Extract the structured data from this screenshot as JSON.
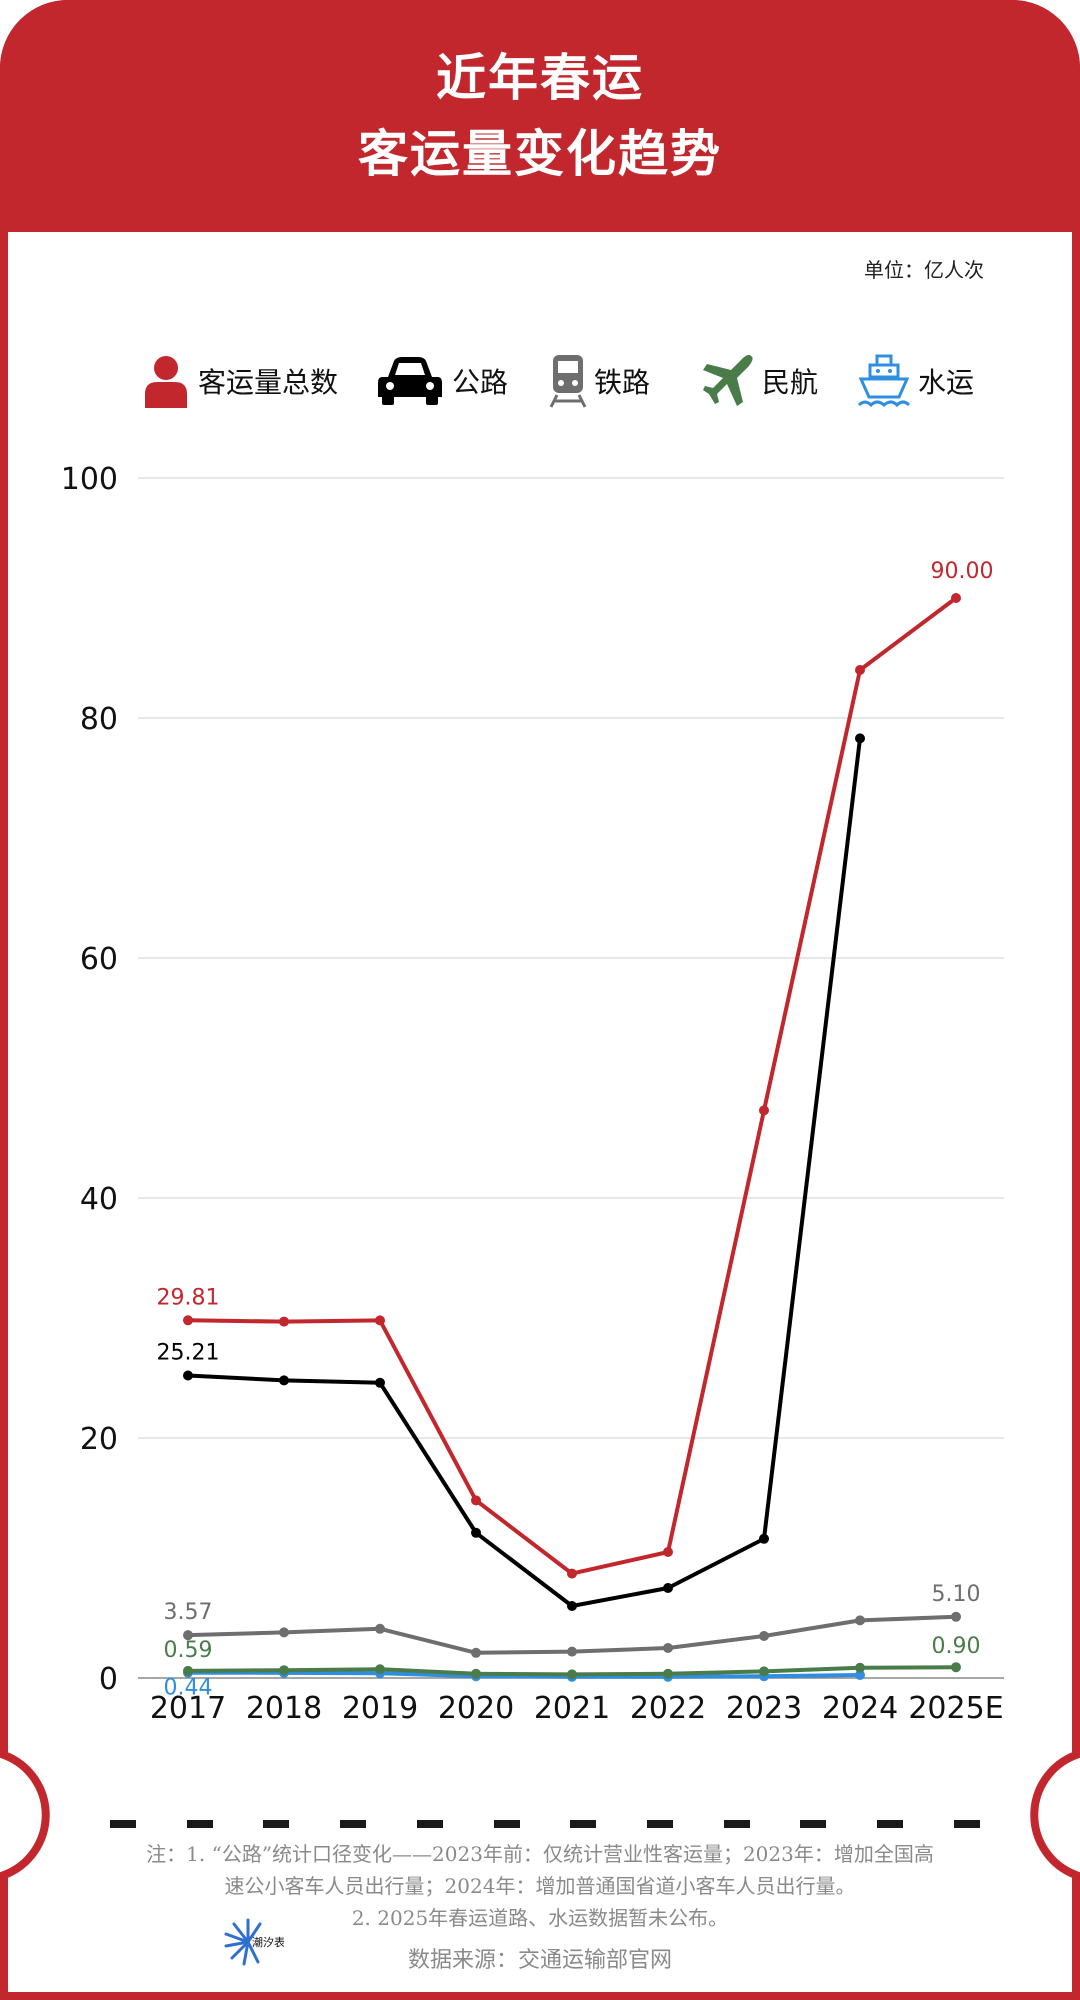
{
  "header": {
    "title_line1": "近年春运",
    "title_line2": "客运量变化趋势",
    "unit": "单位：亿人次"
  },
  "legend": [
    {
      "label": "客运量总数",
      "icon": "person-icon",
      "color": "#c1272d"
    },
    {
      "label": "公路",
      "icon": "car-icon",
      "color": "#000000"
    },
    {
      "label": "铁路",
      "icon": "train-icon",
      "color": "#6e6e6e"
    },
    {
      "label": "民航",
      "icon": "plane-icon",
      "color": "#4a7c4a"
    },
    {
      "label": "水运",
      "icon": "ship-icon",
      "color": "#2f8ee0"
    }
  ],
  "chart_data": {
    "type": "line",
    "categories": [
      "2017",
      "2018",
      "2019",
      "2020",
      "2021",
      "2022",
      "2023",
      "2024",
      "2025E"
    ],
    "ylim": [
      0,
      100
    ],
    "yticks": [
      0,
      20,
      40,
      60,
      80,
      100
    ],
    "grid": true,
    "legend_position": "top",
    "series": [
      {
        "name": "客运量总数",
        "color": "#c1272d",
        "values": [
          29.81,
          29.7,
          29.8,
          14.8,
          8.7,
          10.5,
          47.3,
          84.0,
          90.0
        ]
      },
      {
        "name": "公路",
        "color": "#000000",
        "values": [
          25.21,
          24.8,
          24.6,
          12.1,
          6.0,
          7.5,
          11.6,
          78.3,
          null
        ]
      },
      {
        "name": "铁路",
        "color": "#6e6e6e",
        "values": [
          3.57,
          3.8,
          4.1,
          2.1,
          2.2,
          2.5,
          3.5,
          4.8,
          5.1
        ]
      },
      {
        "name": "民航",
        "color": "#4a7c4a",
        "values": [
          0.59,
          0.65,
          0.73,
          0.35,
          0.3,
          0.35,
          0.55,
          0.85,
          0.9
        ]
      },
      {
        "name": "水运",
        "color": "#2f8ee0",
        "values": [
          0.44,
          0.43,
          0.4,
          0.15,
          0.1,
          0.1,
          0.15,
          0.25,
          null
        ]
      }
    ],
    "data_labels": [
      {
        "series": 0,
        "index": 0,
        "text": "29.81"
      },
      {
        "series": 0,
        "index": 8,
        "text": "90.00"
      },
      {
        "series": 1,
        "index": 0,
        "text": "25.21"
      },
      {
        "series": 2,
        "index": 0,
        "text": "3.57"
      },
      {
        "series": 2,
        "index": 8,
        "text": "5.10"
      },
      {
        "series": 3,
        "index": 0,
        "text": "0.59"
      },
      {
        "series": 3,
        "index": 8,
        "text": "0.90"
      },
      {
        "series": 4,
        "index": 0,
        "text": "0.44"
      }
    ]
  },
  "footer": {
    "note_line1": "注：1. “公路”统计口径变化——2023年前：仅统计营业性客运量；2023年：增加全国高",
    "note_line2": "速公小客车人员出行量；2024年：增加普通国省道小客车人员出行量。",
    "note_line3": "2. 2025年春运道路、水运数据暂未公布。",
    "source": "数据来源：交通运输部官网",
    "logo_text": "潮汐表"
  }
}
